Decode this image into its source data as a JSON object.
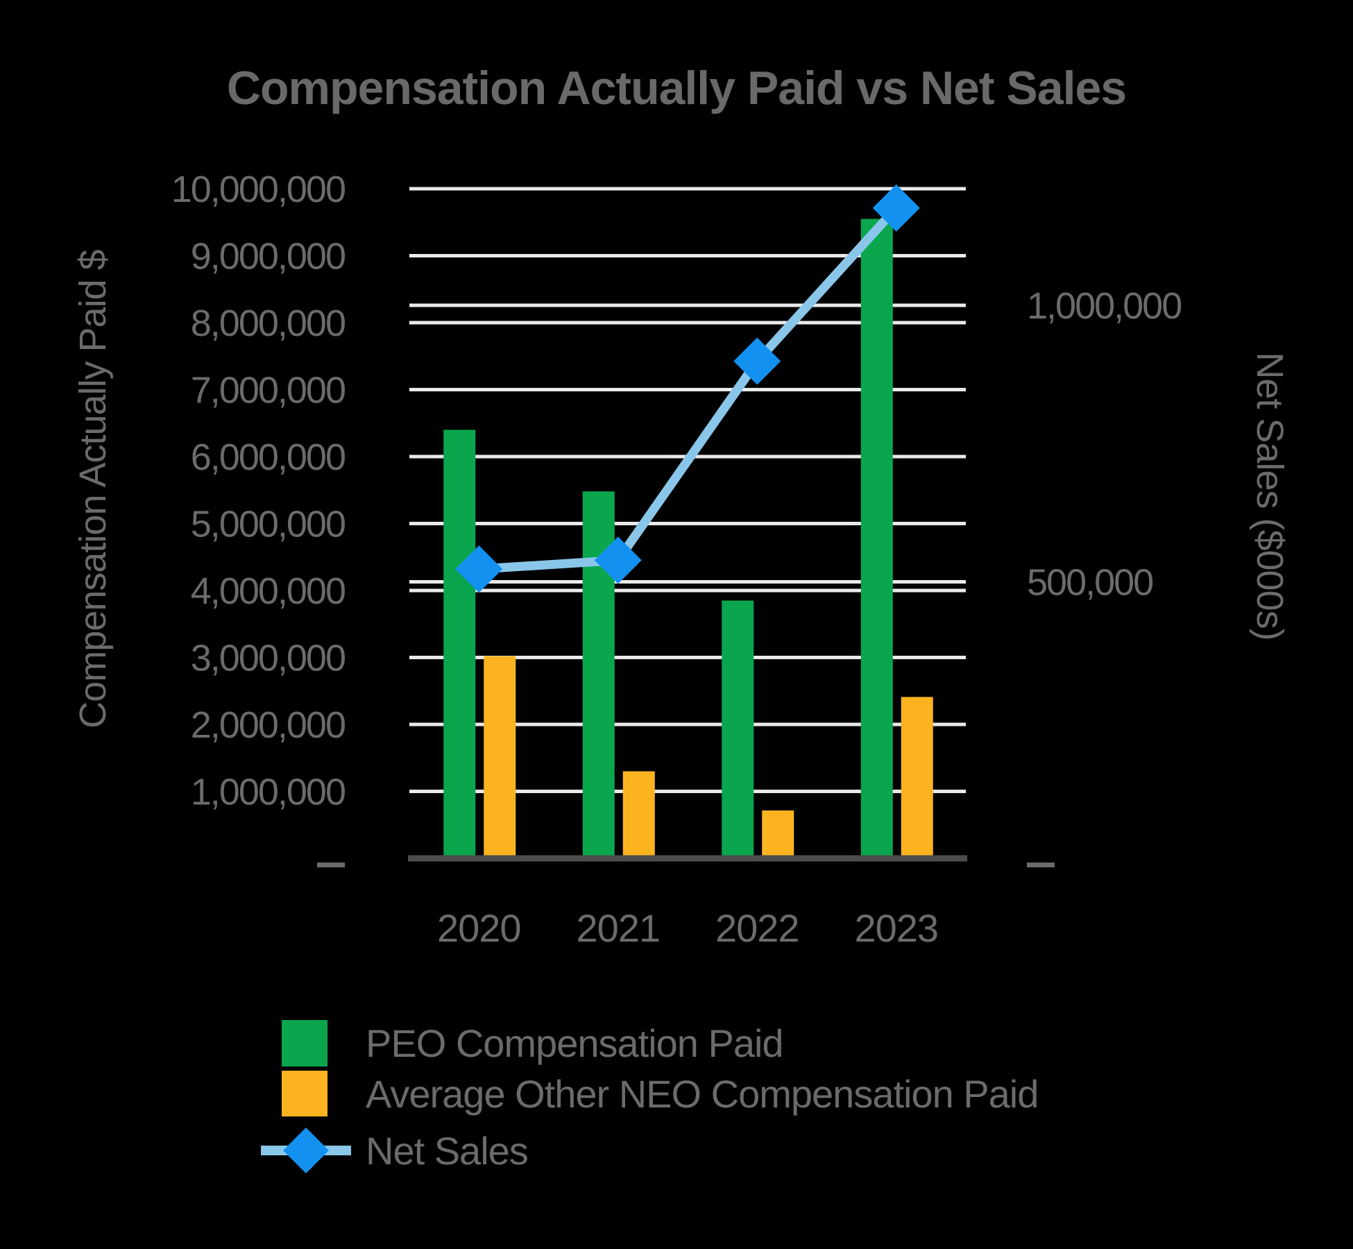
{
  "title": "Compensation Actually Paid vs Net Sales",
  "colors": {
    "background": "#000000",
    "gridline": "#EAEAEA",
    "axis_line": "#4D4D4D",
    "text_gray": "#6B6B6B",
    "title_gray": "#696969",
    "peo_green": "#09A64E",
    "neo_yellow": "#FBB41F",
    "net_sales_marker_blue": "#1291F1",
    "net_sales_line_blue": "#8AC6E9"
  },
  "chart_data": {
    "type": "combo_bar_line",
    "categories": [
      "2020",
      "2021",
      "2022",
      "2023"
    ],
    "series": [
      {
        "name": "PEO Compensation Paid",
        "type": "bar",
        "axis": "left",
        "color": "#09A64E",
        "values": [
          6400000,
          5480000,
          3850000,
          9550000
        ]
      },
      {
        "name": "Average Other NEO Compensation Paid",
        "type": "bar",
        "axis": "left",
        "color": "#FBB41F",
        "values": [
          3020000,
          1300000,
          715000,
          2410000
        ]
      },
      {
        "name": "Net Sales",
        "type": "line",
        "axis": "right",
        "marker": "diamond",
        "color": "#1291F1",
        "line_color": "#8AC6E9",
        "values": [
          523000,
          539000,
          899000,
          1176000
        ]
      }
    ],
    "left_axis": {
      "title": "Compensation Actually Paid $",
      "min": 0,
      "max": 10000000,
      "tick_interval": 1000000,
      "ticks": [
        {
          "value": 0,
          "label": "—"
        },
        {
          "value": 1000000,
          "label": "1,000,000"
        },
        {
          "value": 2000000,
          "label": "2,000,000"
        },
        {
          "value": 3000000,
          "label": "3,000,000"
        },
        {
          "value": 4000000,
          "label": "4,000,000"
        },
        {
          "value": 5000000,
          "label": "5,000,000"
        },
        {
          "value": 6000000,
          "label": "6,000,000"
        },
        {
          "value": 7000000,
          "label": "7,000,000"
        },
        {
          "value": 8000000,
          "label": "8,000,000"
        },
        {
          "value": 9000000,
          "label": "9,000,000"
        },
        {
          "value": 10000000,
          "label": "10,000,000"
        }
      ]
    },
    "right_axis": {
      "title": "Net Sales ($000s)",
      "min": 0,
      "ticks": [
        {
          "value": 0,
          "label": "—"
        },
        {
          "value": 500000,
          "label": "500,000"
        },
        {
          "value": 1000000,
          "label": "1,000,000"
        }
      ]
    },
    "grid": "horizontal",
    "legend_position": "bottom-left"
  },
  "legend": {
    "items": [
      {
        "label": "PEO Compensation Paid",
        "swatch": "bar",
        "color": "#09A64E"
      },
      {
        "label": "Average Other NEO Compensation Paid",
        "swatch": "bar",
        "color": "#FBB41F"
      },
      {
        "label": "Net Sales",
        "swatch": "diamond-line",
        "color": "#1291F1",
        "line_color": "#8AC6E9"
      }
    ]
  }
}
